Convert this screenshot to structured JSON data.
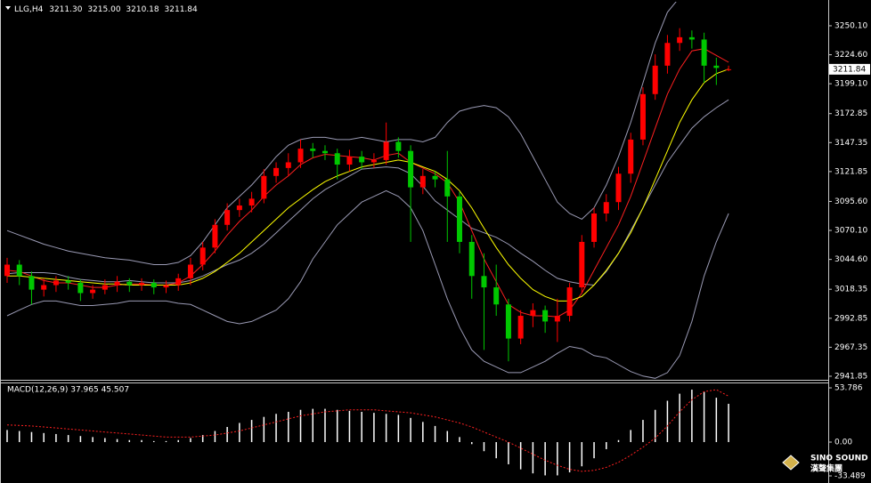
{
  "header": {
    "symbol": "LLG,H4",
    "open": "3211.30",
    "high": "3215.00",
    "low": "3210.18",
    "close": "3211.84"
  },
  "logo": {
    "name": "SINO SOUND",
    "subtitle": "漢聲集團"
  },
  "chart_data": [
    {
      "type": "candlestick",
      "up_color": "#ff0000",
      "down_color": "#00c800",
      "ylim": [
        2938.7,
        3266.5
      ],
      "yticks": [
        {
          "value": 3250.1,
          "label": "3250.10"
        },
        {
          "value": 3224.6,
          "label": "3224.60"
        },
        {
          "value": 3199.1,
          "label": "3199.10"
        },
        3172.85,
        3147.35,
        3121.85,
        {
          "value": 3095.6,
          "label": "3095.60"
        },
        {
          "value": 3070.1,
          "label": "3070.10"
        },
        {
          "value": 3044.6,
          "label": "3044.60"
        },
        3018.35,
        2992.85,
        2967.35,
        2941.85
      ],
      "open": [
        3030,
        3040,
        3030,
        3018,
        3022,
        3026,
        3024,
        3015,
        3018,
        3022,
        3025,
        3022,
        3024,
        3020,
        3022,
        3028,
        3040,
        3055,
        3075,
        3088,
        3092,
        3098,
        3118,
        3125,
        3130,
        3142,
        3140,
        3138,
        3128,
        3135,
        3130,
        3132,
        3148,
        3140,
        3108,
        3118,
        3115,
        3100,
        3060,
        3030,
        3020,
        3005,
        2975,
        2995,
        3000,
        2990,
        2995,
        3020,
        3060,
        3085,
        3095,
        3120,
        3150,
        3190,
        3215,
        3235,
        3240,
        3238,
        3215,
        3211.3
      ],
      "high": [
        3046,
        3044,
        3034,
        3028,
        3030,
        3030,
        3027,
        3022,
        3027,
        3030,
        3028,
        3028,
        3027,
        3026,
        3032,
        3046,
        3060,
        3080,
        3094,
        3098,
        3104,
        3124,
        3130,
        3138,
        3150,
        3147,
        3145,
        3142,
        3141,
        3140,
        3138,
        3165,
        3152,
        3145,
        3124,
        3122,
        3140,
        3104,
        3066,
        3050,
        3040,
        3010,
        3000,
        3006,
        3004,
        3010,
        3024,
        3066,
        3090,
        3102,
        3126,
        3156,
        3196,
        3225,
        3242,
        3248,
        3246,
        3244,
        3222,
        3215
      ],
      "low": [
        3024,
        3022,
        3005,
        3012,
        3016,
        3018,
        3008,
        3010,
        3014,
        3016,
        3016,
        3017,
        3014,
        3015,
        3017,
        3022,
        3035,
        3050,
        3070,
        3082,
        3086,
        3094,
        3112,
        3118,
        3125,
        3134,
        3132,
        3115,
        3122,
        3124,
        3125,
        3128,
        3134,
        3060,
        3102,
        3108,
        3060,
        3050,
        3010,
        2965,
        2995,
        2955,
        2970,
        2985,
        2980,
        2972,
        2990,
        3015,
        3055,
        3078,
        3088,
        3112,
        3145,
        3185,
        3208,
        3228,
        3230,
        3200,
        3198,
        3210.18
      ],
      "close": [
        3040,
        3030,
        3018,
        3022,
        3026,
        3024,
        3015,
        3018,
        3022,
        3025,
        3022,
        3024,
        3020,
        3022,
        3028,
        3040,
        3055,
        3075,
        3088,
        3092,
        3098,
        3118,
        3125,
        3130,
        3142,
        3140,
        3138,
        3128,
        3135,
        3130,
        3132,
        3148,
        3140,
        3108,
        3118,
        3115,
        3100,
        3060,
        3030,
        3020,
        3005,
        2975,
        2995,
        3000,
        2990,
        2995,
        3020,
        3060,
        3085,
        3095,
        3120,
        3150,
        3190,
        3215,
        3235,
        3240,
        3238,
        3215,
        3213,
        3211.84
      ],
      "lines": [
        {
          "color": "#9a9ab4",
          "values": [
            3070,
            3066,
            3062,
            3058,
            3055,
            3052,
            3050,
            3048,
            3046,
            3045,
            3044,
            3042,
            3040,
            3040,
            3042,
            3048,
            3060,
            3075,
            3090,
            3100,
            3110,
            3122,
            3135,
            3145,
            3150,
            3152,
            3152,
            3150,
            3150,
            3152,
            3150,
            3148,
            3150,
            3150,
            3148,
            3152,
            3165,
            3175,
            3178,
            3180,
            3178,
            3170,
            3155,
            3135,
            3115,
            3095,
            3085,
            3080,
            3090,
            3110,
            3135,
            3165,
            3200,
            3235,
            3262,
            3275,
            3280,
            3282,
            3280,
            3278
          ]
        },
        {
          "color": "#9a9ab4",
          "values": [
            3032,
            3033,
            3033,
            3033,
            3032,
            3029,
            3027,
            3026,
            3025,
            3025,
            3026,
            3025,
            3024,
            3024,
            3024,
            3026,
            3030,
            3035,
            3040,
            3044,
            3050,
            3058,
            3068,
            3078,
            3088,
            3098,
            3106,
            3112,
            3118,
            3124,
            3125,
            3126,
            3125,
            3120,
            3109,
            3096,
            3088,
            3080,
            3072,
            3068,
            3064,
            3058,
            3050,
            3043,
            3035,
            3028,
            3025,
            3023,
            3022,
            3034,
            3050,
            3070,
            3090,
            3110,
            3130,
            3145,
            3160,
            3170,
            3178,
            3185
          ]
        },
        {
          "color": "#9a9ab4",
          "values": [
            2995,
            3000,
            3005,
            3008,
            3008,
            3006,
            3004,
            3004,
            3005,
            3006,
            3008,
            3008,
            3008,
            3008,
            3006,
            3005,
            3000,
            2995,
            2990,
            2988,
            2990,
            2995,
            3000,
            3010,
            3025,
            3045,
            3060,
            3075,
            3085,
            3095,
            3100,
            3105,
            3100,
            3090,
            3070,
            3040,
            3010,
            2985,
            2965,
            2955,
            2950,
            2945,
            2945,
            2950,
            2955,
            2962,
            2968,
            2966,
            2960,
            2958,
            2952,
            2946,
            2942,
            2940,
            2945,
            2960,
            2990,
            3030,
            3060,
            3085
          ]
        },
        {
          "color": "#ff2020",
          "values": [
            3035,
            3034,
            3030,
            3026,
            3024,
            3024,
            3022,
            3020,
            3020,
            3022,
            3023,
            3023,
            3022,
            3022,
            3024,
            3030,
            3040,
            3052,
            3066,
            3078,
            3088,
            3100,
            3110,
            3118,
            3128,
            3134,
            3137,
            3136,
            3135,
            3134,
            3132,
            3136,
            3138,
            3130,
            3125,
            3120,
            3112,
            3095,
            3070,
            3045,
            3025,
            3005,
            2998,
            2995,
            2995,
            2994,
            3000,
            3015,
            3035,
            3055,
            3075,
            3100,
            3130,
            3160,
            3190,
            3212,
            3228,
            3230,
            3224,
            3218
          ]
        },
        {
          "color": "#ffff00",
          "values": [
            3030,
            3030,
            3029,
            3028,
            3027,
            3026,
            3025,
            3024,
            3023,
            3023,
            3022,
            3022,
            3022,
            3022,
            3022,
            3024,
            3028,
            3034,
            3042,
            3050,
            3060,
            3070,
            3080,
            3090,
            3098,
            3106,
            3113,
            3118,
            3122,
            3126,
            3128,
            3130,
            3132,
            3130,
            3126,
            3122,
            3115,
            3105,
            3090,
            3072,
            3055,
            3040,
            3028,
            3018,
            3012,
            3008,
            3008,
            3012,
            3022,
            3035,
            3050,
            3068,
            3090,
            3115,
            3140,
            3165,
            3185,
            3200,
            3208,
            3212
          ]
        }
      ]
    },
    {
      "type": "macd",
      "title": "MACD(12,26,9) 37.965 45.507",
      "color": "#ffffff",
      "signal_color": "#ff2020",
      "ylim": [
        -37.9,
        59.1
      ],
      "yticks": [
        53.786,
        {
          "value": 0,
          "label": "0.00"
        },
        -33.489
      ],
      "values": [
        12,
        11,
        10,
        9,
        8,
        7,
        6,
        5,
        4,
        3,
        2,
        2,
        1,
        1,
        2,
        4,
        7,
        11,
        15,
        19,
        22,
        25,
        28,
        30,
        32,
        33,
        33,
        32,
        31,
        30,
        29,
        28,
        27,
        24,
        20,
        16,
        11,
        5,
        -2,
        -9,
        -16,
        -22,
        -27,
        -31,
        -33,
        -33,
        -30,
        -24,
        -16,
        -7,
        2,
        12,
        22,
        32,
        41,
        48,
        52,
        50,
        44,
        37.965
      ],
      "signal": [
        17,
        16.5,
        16,
        15,
        14,
        13,
        12,
        11,
        10,
        9,
        8,
        7,
        6,
        5,
        5,
        5,
        6,
        7,
        9,
        11,
        14,
        17,
        20,
        23,
        26,
        28,
        30,
        31,
        32,
        32,
        32,
        31,
        30,
        29,
        27,
        25,
        22,
        19,
        15,
        10,
        5,
        0,
        -6,
        -12,
        -18,
        -23,
        -27,
        -29,
        -28,
        -25,
        -20,
        -13,
        -5,
        4,
        16,
        30,
        42,
        50,
        52,
        45.507
      ]
    }
  ]
}
